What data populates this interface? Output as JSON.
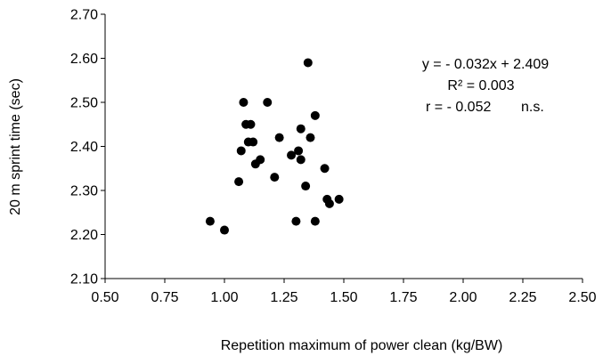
{
  "chart_data": {
    "type": "scatter",
    "xlabel": "Repetition maximum of power clean (kg/BW)",
    "ylabel": "20 m sprint time (sec)",
    "xlim": [
      0.5,
      2.5
    ],
    "ylim": [
      2.1,
      2.7
    ],
    "x_ticks": [
      "0.50",
      "0.75",
      "1.00",
      "1.25",
      "1.50",
      "1.75",
      "2.00",
      "2.25",
      "2.50"
    ],
    "y_ticks": [
      "2.10",
      "2.20",
      "2.30",
      "2.40",
      "2.50",
      "2.60",
      "2.70"
    ],
    "grid": false,
    "marker_color": "#000000",
    "annotations": {
      "equation": "y = - 0.032x + 2.409",
      "r_squared": "R² = 0.003",
      "r_value": "r = - 0.052",
      "significance": "n.s."
    },
    "points": [
      {
        "x": 0.94,
        "y": 2.23
      },
      {
        "x": 1.0,
        "y": 2.21
      },
      {
        "x": 1.06,
        "y": 2.32
      },
      {
        "x": 1.07,
        "y": 2.39
      },
      {
        "x": 1.08,
        "y": 2.5
      },
      {
        "x": 1.09,
        "y": 2.45
      },
      {
        "x": 1.1,
        "y": 2.41
      },
      {
        "x": 1.11,
        "y": 2.45
      },
      {
        "x": 1.12,
        "y": 2.41
      },
      {
        "x": 1.13,
        "y": 2.36
      },
      {
        "x": 1.15,
        "y": 2.37
      },
      {
        "x": 1.18,
        "y": 2.5
      },
      {
        "x": 1.21,
        "y": 2.33
      },
      {
        "x": 1.23,
        "y": 2.42
      },
      {
        "x": 1.28,
        "y": 2.38
      },
      {
        "x": 1.3,
        "y": 2.23
      },
      {
        "x": 1.31,
        "y": 2.39
      },
      {
        "x": 1.32,
        "y": 2.37
      },
      {
        "x": 1.32,
        "y": 2.44
      },
      {
        "x": 1.34,
        "y": 2.31
      },
      {
        "x": 1.35,
        "y": 2.59
      },
      {
        "x": 1.36,
        "y": 2.42
      },
      {
        "x": 1.38,
        "y": 2.47
      },
      {
        "x": 1.38,
        "y": 2.23
      },
      {
        "x": 1.42,
        "y": 2.35
      },
      {
        "x": 1.43,
        "y": 2.28
      },
      {
        "x": 1.44,
        "y": 2.27
      },
      {
        "x": 1.48,
        "y": 2.28
      }
    ]
  }
}
